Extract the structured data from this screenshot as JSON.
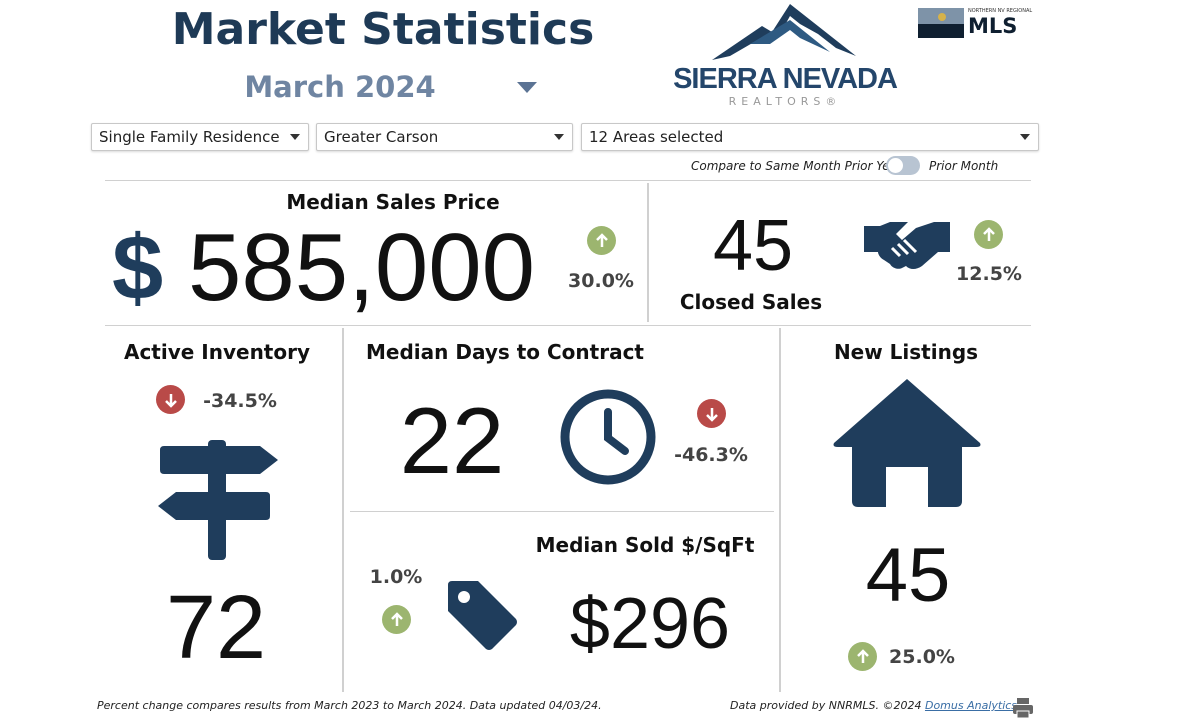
{
  "header": {
    "title": "Market Statistics",
    "month": "March 2024"
  },
  "logos": {
    "sierra": "SIERRA NEVADA",
    "sierra_sub": "REALTORS®",
    "mls_small": "NORTHERN NV REGIONAL",
    "mls": "MLS"
  },
  "filters": {
    "property_type": "Single Family Residence",
    "region": "Greater Carson",
    "areas": "12 Areas selected"
  },
  "compare": {
    "left_label": "Compare to Same Month Prior Year",
    "right_label": "Prior Month",
    "toggle_state": "off"
  },
  "colors": {
    "navy": "#1f3d5c",
    "up": "#9cb56f",
    "down": "#b94a48"
  },
  "median_sales_price": {
    "title": "Median Sales Price",
    "currency": "$",
    "value": "585,000",
    "change": "30.0%",
    "direction": "up"
  },
  "closed_sales": {
    "title": "Closed Sales",
    "value": "45",
    "change": "12.5%",
    "direction": "up",
    "icon": "handshake-icon"
  },
  "active_inventory": {
    "title": "Active Inventory",
    "value": "72",
    "change": "-34.5%",
    "direction": "down",
    "icon": "signpost-icon"
  },
  "median_days": {
    "title": "Median Days to Contract",
    "value": "22",
    "change": "-46.3%",
    "direction": "down",
    "icon": "clock-icon"
  },
  "median_sqft": {
    "title": "Median Sold $/SqFt",
    "value": "$296",
    "change": "1.0%",
    "direction": "up",
    "icon": "tag-icon"
  },
  "new_listings": {
    "title": "New Listings",
    "value": "45",
    "change": "25.0%",
    "direction": "up",
    "icon": "house-icon"
  },
  "footer": {
    "note": "Percent change compares results from March 2023 to March 2024.  Data updated 04/03/24.",
    "credit": "Data provided by NNRMLS. ©2024 ",
    "link": "Domus Analytics"
  }
}
